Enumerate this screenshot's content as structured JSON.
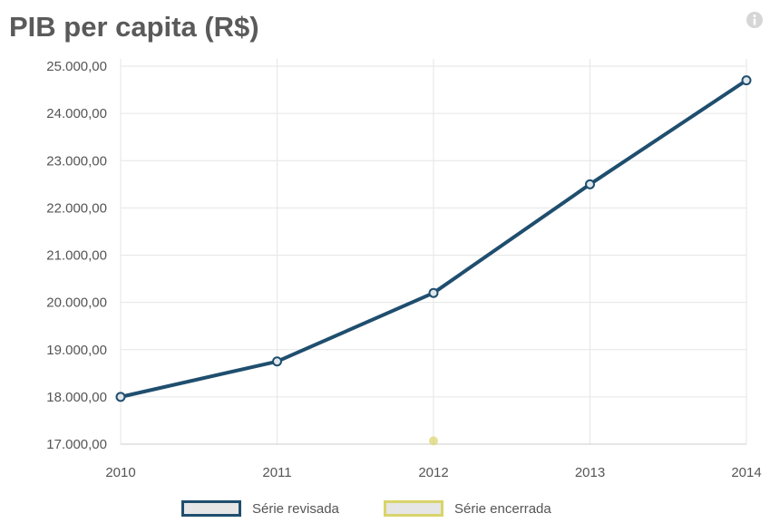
{
  "header": {
    "title": "PIB per capita (R$)",
    "info_icon": "info-icon"
  },
  "chart_data": {
    "type": "line",
    "title": "PIB per capita (R$)",
    "xlabel": "",
    "ylabel": "",
    "categories": [
      "2010",
      "2011",
      "2012",
      "2013",
      "2014"
    ],
    "ylim": [
      17000,
      25000
    ],
    "yticks": [
      17000,
      18000,
      19000,
      20000,
      21000,
      22000,
      23000,
      24000,
      25000
    ],
    "ytick_labels": [
      "17.000,00",
      "18.000,00",
      "19.000,00",
      "20.000,00",
      "21.000,00",
      "22.000,00",
      "23.000,00",
      "24.000,00",
      "25.000,00"
    ],
    "grid": true,
    "legend_position": "bottom-center",
    "series": [
      {
        "name": "Série revisada",
        "color": "#1f4e6e",
        "values": [
          18000,
          18750,
          20200,
          22500,
          24700
        ]
      },
      {
        "name": "Série encerrada",
        "color": "#d9d46a",
        "values": [
          null,
          null,
          17070,
          null,
          null
        ]
      }
    ]
  }
}
